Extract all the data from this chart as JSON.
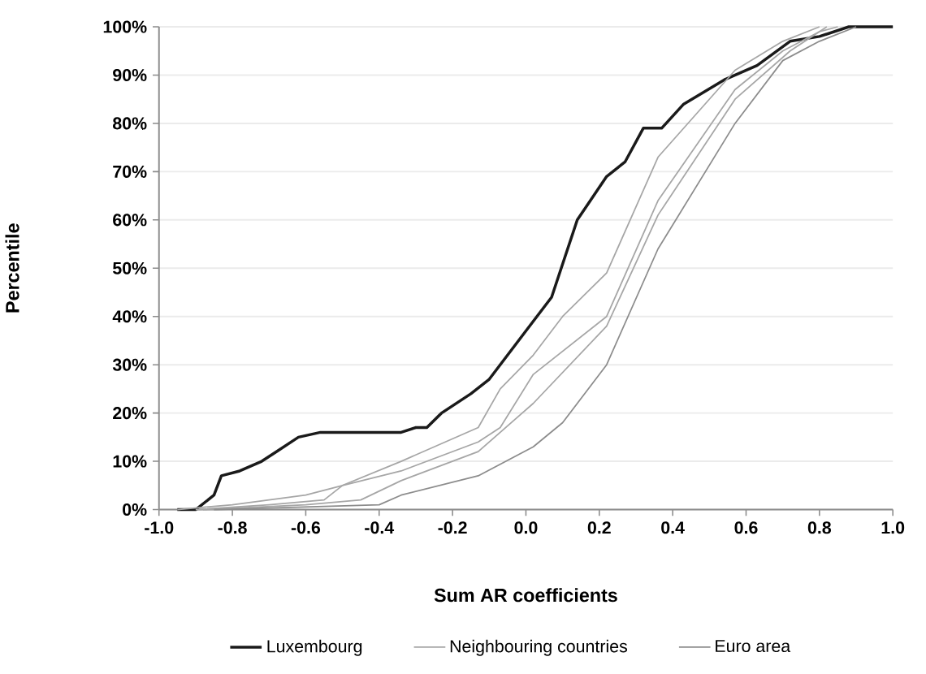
{
  "chart_data": {
    "type": "line",
    "xlabel": "Sum AR coefficients",
    "ylabel": "Percentile",
    "xlim": [
      -1.0,
      1.0
    ],
    "xticks": [
      {
        "value": -1.0,
        "label": "-1.0"
      },
      -0.8,
      -0.6,
      -0.4,
      -0.2,
      {
        "value": 0.0,
        "label": "0.0"
      },
      0.2,
      0.4,
      0.6,
      0.8,
      {
        "value": 1.0,
        "label": "1.0"
      }
    ],
    "ylim": [
      0,
      100
    ],
    "yticks": [
      {
        "value": 0,
        "label": "0%"
      },
      {
        "value": 10,
        "label": "10%"
      },
      {
        "value": 20,
        "label": "20%"
      },
      {
        "value": 30,
        "label": "30%"
      },
      {
        "value": 40,
        "label": "40%"
      },
      {
        "value": 50,
        "label": "50%"
      },
      {
        "value": 60,
        "label": "60%"
      },
      {
        "value": 70,
        "label": "70%"
      },
      {
        "value": 80,
        "label": "80%"
      },
      {
        "value": 90,
        "label": "90%"
      },
      {
        "value": 100,
        "label": "100%"
      }
    ],
    "grid": "y",
    "legend": "bottom",
    "marker": "none",
    "line_style": "solid",
    "series": [
      {
        "name": "Luxembourg",
        "color": "#1a1a1a",
        "x": [
          -0.95,
          -0.9,
          -0.85,
          -0.83,
          -0.78,
          -0.72,
          -0.68,
          -0.62,
          -0.56,
          -0.34,
          -0.3,
          -0.27,
          -0.23,
          -0.15,
          -0.1,
          -0.06,
          0.0,
          0.07,
          0.14,
          0.22,
          0.27,
          0.32,
          0.37,
          0.43,
          0.54,
          0.63,
          0.72,
          0.8,
          0.88,
          1.0
        ],
        "values": [
          0,
          0,
          3,
          7,
          8,
          10,
          12,
          15,
          16,
          16,
          17,
          17,
          20,
          24,
          27,
          31,
          37,
          44,
          60,
          69,
          72,
          79,
          79,
          84,
          89,
          92,
          97,
          98,
          100,
          100
        ]
      },
      {
        "name": "Neighbouring countries",
        "color": "#a6a6a6",
        "x": [
          -0.95,
          -0.8,
          -0.6,
          -0.5,
          -0.34,
          -0.13,
          -0.07,
          0.02,
          0.1,
          0.22,
          0.36,
          0.57,
          0.7,
          0.8
        ],
        "values": [
          0,
          1,
          3,
          5,
          10,
          17,
          25,
          32,
          40,
          49,
          73,
          91,
          97,
          100
        ]
      },
      {
        "color": "#a6a6a6",
        "x": [
          -0.9,
          -0.7,
          -0.55,
          -0.5,
          -0.34,
          -0.13,
          -0.07,
          0.02,
          0.22,
          0.36,
          0.57,
          0.7,
          0.8,
          0.85
        ],
        "values": [
          0,
          1,
          2,
          5,
          8,
          14,
          17,
          28,
          40,
          64,
          87,
          95,
          99,
          100
        ]
      },
      {
        "color": "#a6a6a6",
        "x": [
          -0.88,
          -0.6,
          -0.45,
          -0.34,
          -0.13,
          0.02,
          0.22,
          0.36,
          0.57,
          0.72,
          0.82
        ],
        "values": [
          0,
          1,
          2,
          6,
          12,
          22,
          38,
          61,
          85,
          95,
          100
        ]
      },
      {
        "name": "Euro area",
        "color": "#8c8c8c",
        "x": [
          -0.85,
          -0.4,
          -0.34,
          -0.13,
          0.02,
          0.1,
          0.22,
          0.36,
          0.57,
          0.7,
          0.8,
          0.9
        ],
        "values": [
          0,
          1,
          3,
          7,
          13,
          18,
          30,
          54,
          80,
          93,
          97,
          100
        ]
      }
    ]
  }
}
